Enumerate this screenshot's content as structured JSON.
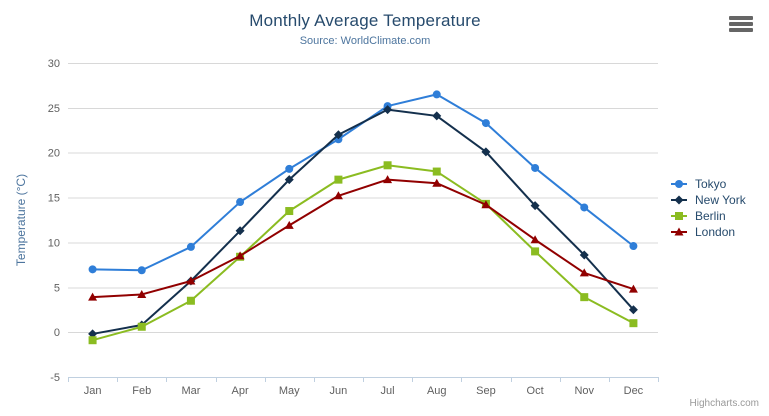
{
  "title": "Monthly Average Temperature",
  "subtitle": "Source: WorldClimate.com",
  "credit": "Highcharts.com",
  "icons": {
    "context_menu": "hamburger"
  },
  "colors": {
    "title": "#274b6d",
    "subtitle": "#4d759e",
    "axis_title": "#4d759e",
    "axis_labels": "#606060",
    "grid_line": "#d8d8d8",
    "axis_line": "#c0d0e0",
    "legend_text": "#274b6d",
    "credit_text": "#999999"
  },
  "chart_data": {
    "type": "line",
    "title": "Monthly Average Temperature",
    "subtitle": "Source: WorldClimate.com",
    "categories": [
      "Jan",
      "Feb",
      "Mar",
      "Apr",
      "May",
      "Jun",
      "Jul",
      "Aug",
      "Sep",
      "Oct",
      "Nov",
      "Dec"
    ],
    "series": [
      {
        "name": "Tokyo",
        "color": "#2f7ed8",
        "marker": "circle",
        "values": [
          7.0,
          6.9,
          9.5,
          14.5,
          18.2,
          21.5,
          25.2,
          26.5,
          23.3,
          18.3,
          13.9,
          9.6
        ]
      },
      {
        "name": "New York",
        "color": "#14304d",
        "marker": "diamond",
        "values": [
          -0.2,
          0.8,
          5.7,
          11.3,
          17.0,
          22.0,
          24.8,
          24.1,
          20.1,
          14.1,
          8.6,
          2.5
        ]
      },
      {
        "name": "Berlin",
        "color": "#8bbc21",
        "marker": "square",
        "values": [
          -0.9,
          0.6,
          3.5,
          8.4,
          13.5,
          17.0,
          18.6,
          17.9,
          14.3,
          9.0,
          3.9,
          1.0
        ]
      },
      {
        "name": "London",
        "color": "#910000",
        "marker": "triangle",
        "values": [
          3.9,
          4.2,
          5.7,
          8.5,
          11.9,
          15.2,
          17.0,
          16.6,
          14.2,
          10.3,
          6.6,
          4.8
        ]
      }
    ],
    "xlabel": "",
    "ylabel": "Temperature (°C)",
    "ylim": [
      -5,
      30
    ],
    "yticks": [
      -5,
      0,
      5,
      10,
      15,
      20,
      25,
      30
    ],
    "grid": true,
    "legend_position": "right"
  }
}
